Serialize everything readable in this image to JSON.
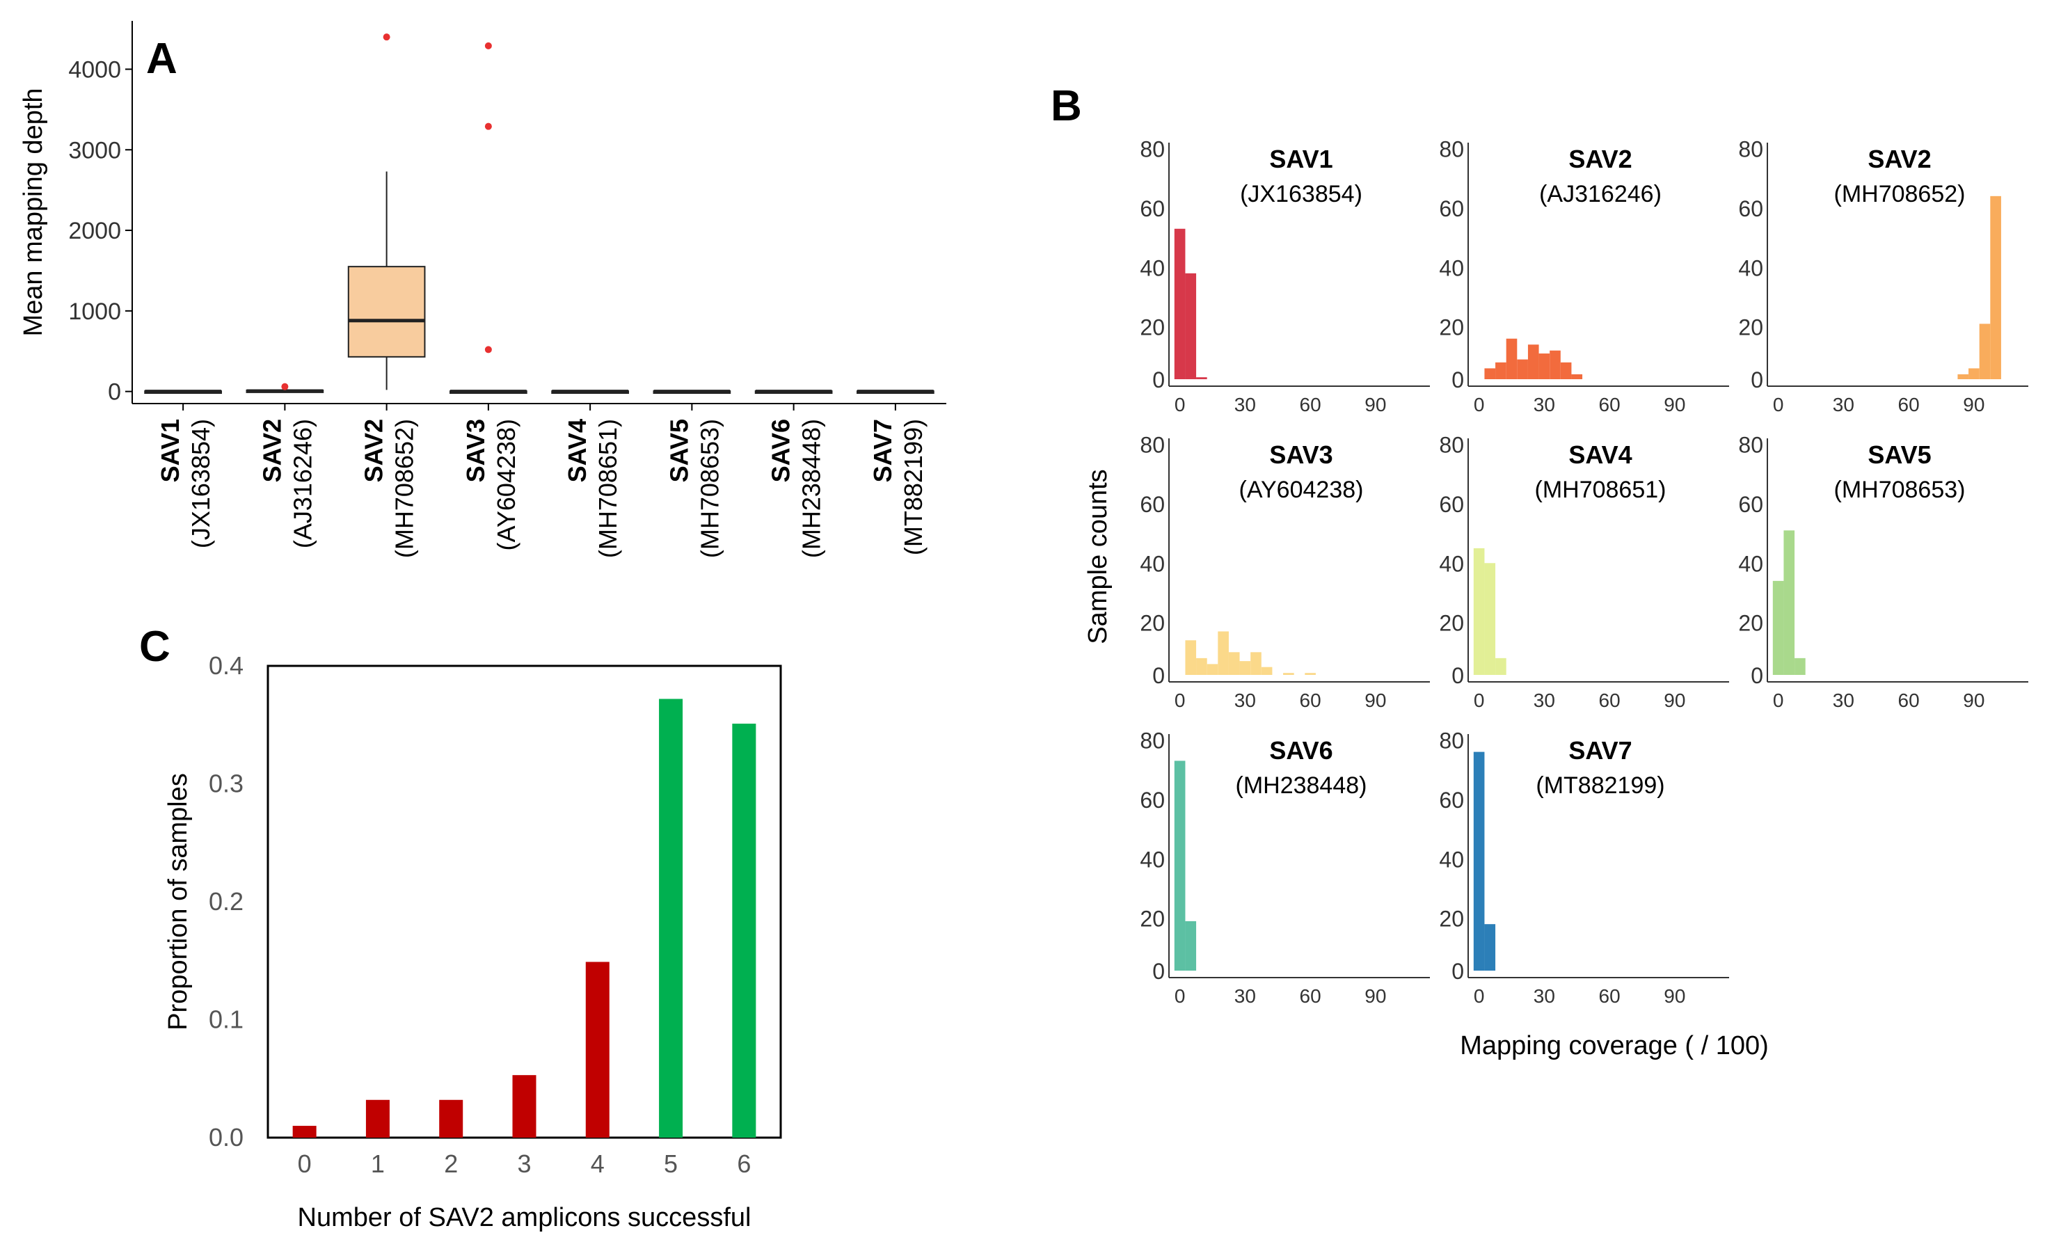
{
  "panel_letters": [
    "A",
    "B",
    "C"
  ],
  "chart_data": [
    {
      "panel": "A",
      "type": "box",
      "ylabel": "Mean mapping depth",
      "yticks": [
        0,
        1000,
        2000,
        3000,
        4000
      ],
      "ylim": [
        -150,
        4600
      ],
      "grid": false,
      "categories": [
        {
          "name": "SAV1",
          "accession": "(JX163854)"
        },
        {
          "name": "SAV2",
          "accession": "(AJ316246)"
        },
        {
          "name": "SAV2",
          "accession": "(MH708652)"
        },
        {
          "name": "SAV3",
          "accession": "(AY604238)"
        },
        {
          "name": "SAV4",
          "accession": "(MH708651)"
        },
        {
          "name": "SAV5",
          "accession": "(MH708653)"
        },
        {
          "name": "SAV6",
          "accession": "(MH238448)"
        },
        {
          "name": "SAV7",
          "accession": "(MT882199)"
        }
      ],
      "boxes": [
        {
          "q1": 0,
          "median": 0,
          "q3": 5,
          "whisker_low": 0,
          "whisker_high": 10,
          "outliers": [],
          "color": "#f8cc9e"
        },
        {
          "q1": 0,
          "median": 5,
          "q3": 15,
          "whisker_low": 0,
          "whisker_high": 30,
          "outliers": [
            60
          ],
          "color": "#f8cc9e"
        },
        {
          "q1": 430,
          "median": 880,
          "q3": 1550,
          "whisker_low": 20,
          "whisker_high": 2730,
          "outliers": [
            4400
          ],
          "color": "#f8cc9e"
        },
        {
          "q1": 0,
          "median": 0,
          "q3": 5,
          "whisker_low": 0,
          "whisker_high": 10,
          "outliers": [
            520,
            3290,
            4290
          ],
          "color": "#f8cc9e"
        },
        {
          "q1": 0,
          "median": 0,
          "q3": 5,
          "whisker_low": 0,
          "whisker_high": 10,
          "outliers": [],
          "color": "#f8cc9e"
        },
        {
          "q1": 0,
          "median": 0,
          "q3": 5,
          "whisker_low": 0,
          "whisker_high": 10,
          "outliers": [],
          "color": "#f8cc9e"
        },
        {
          "q1": 0,
          "median": 0,
          "q3": 5,
          "whisker_low": 0,
          "whisker_high": 10,
          "outliers": [],
          "color": "#f8cc9e"
        },
        {
          "q1": 0,
          "median": 0,
          "q3": 5,
          "whisker_low": 0,
          "whisker_high": 10,
          "outliers": [],
          "color": "#f8cc9e"
        }
      ],
      "outlier_color": "#e83030"
    },
    {
      "panel": "B",
      "type": "histogram",
      "xlabel": "Mapping coverage ( / 100)",
      "ylabel": "Sample counts",
      "xticks": [
        0,
        30,
        60,
        90
      ],
      "yticks": [
        0,
        20,
        40,
        60,
        80
      ],
      "xlim": [
        -5,
        115
      ],
      "ylim": [
        0,
        82
      ],
      "bin_width": 5,
      "panels": [
        {
          "name": "SAV1",
          "accession": "(JX163854)",
          "color": "#d7384a",
          "bins": [
            {
              "x": 0,
              "count": 53
            },
            {
              "x": 5,
              "count": 38
            },
            {
              "x": 10,
              "count": 3
            }
          ]
        },
        {
          "name": "SAV2",
          "accession": "(AJ316246)",
          "color": "#f26b3d",
          "bins": [
            {
              "x": 0,
              "count": 1
            },
            {
              "x": 5,
              "count": 6
            },
            {
              "x": 10,
              "count": 8
            },
            {
              "x": 15,
              "count": 16
            },
            {
              "x": 20,
              "count": 9
            },
            {
              "x": 25,
              "count": 14
            },
            {
              "x": 30,
              "count": 11
            },
            {
              "x": 35,
              "count": 12
            },
            {
              "x": 40,
              "count": 8
            },
            {
              "x": 45,
              "count": 4
            }
          ]
        },
        {
          "name": "SAV2",
          "accession": "(MH708652)",
          "color": "#f9ac5c",
          "bins": [
            {
              "x": 75,
              "count": 1
            },
            {
              "x": 80,
              "count": 1
            },
            {
              "x": 85,
              "count": 4
            },
            {
              "x": 90,
              "count": 6
            },
            {
              "x": 95,
              "count": 21
            },
            {
              "x": 100,
              "count": 64
            }
          ]
        },
        {
          "name": "SAV3",
          "accession": "(AY604238)",
          "color": "#fbd98a",
          "bins": [
            {
              "x": 0,
              "count": 2
            },
            {
              "x": 5,
              "count": 14
            },
            {
              "x": 10,
              "count": 8
            },
            {
              "x": 15,
              "count": 6
            },
            {
              "x": 20,
              "count": 17
            },
            {
              "x": 25,
              "count": 10
            },
            {
              "x": 30,
              "count": 7
            },
            {
              "x": 35,
              "count": 10
            },
            {
              "x": 40,
              "count": 5
            },
            {
              "x": 45,
              "count": 2
            },
            {
              "x": 50,
              "count": 3
            },
            {
              "x": 55,
              "count": 2
            },
            {
              "x": 60,
              "count": 3
            },
            {
              "x": 65,
              "count": 2
            },
            {
              "x": 70,
              "count": 1
            },
            {
              "x": 80,
              "count": 1
            },
            {
              "x": 90,
              "count": 1
            },
            {
              "x": 100,
              "count": 2
            }
          ]
        },
        {
          "name": "SAV4",
          "accession": "(MH708651)",
          "color": "#e2ef96",
          "bins": [
            {
              "x": 0,
              "count": 45
            },
            {
              "x": 5,
              "count": 40
            },
            {
              "x": 10,
              "count": 8
            },
            {
              "x": 15,
              "count": 2
            }
          ]
        },
        {
          "name": "SAV5",
          "accession": "(MH708653)",
          "color": "#a9d98c",
          "bins": [
            {
              "x": 0,
              "count": 34
            },
            {
              "x": 5,
              "count": 51
            },
            {
              "x": 10,
              "count": 8
            },
            {
              "x": 15,
              "count": 1
            }
          ]
        },
        {
          "name": "SAV6",
          "accession": "(MH238448)",
          "color": "#5cc0a3",
          "bins": [
            {
              "x": 0,
              "count": 73
            },
            {
              "x": 5,
              "count": 19
            },
            {
              "x": 10,
              "count": 2
            }
          ]
        },
        {
          "name": "SAV7",
          "accession": "(MT882199)",
          "color": "#2c7fb8",
          "bins": [
            {
              "x": 0,
              "count": 76
            },
            {
              "x": 5,
              "count": 18
            }
          ]
        }
      ]
    },
    {
      "panel": "C",
      "type": "bar",
      "xlabel": "Number of SAV2 amplicons successful",
      "ylabel": "Proportion of samples",
      "categories": [
        "0",
        "1",
        "2",
        "3",
        "4",
        "5",
        "6"
      ],
      "values": [
        0.01,
        0.032,
        0.032,
        0.053,
        0.149,
        0.372,
        0.351
      ],
      "colors": [
        "#c00000",
        "#c00000",
        "#c00000",
        "#c00000",
        "#c00000",
        "#00b050",
        "#00b050"
      ],
      "yticks": [
        "0.0",
        "0.1",
        "0.2",
        "0.3",
        "0.4"
      ],
      "ylim": [
        0,
        0.4
      ],
      "grid": false
    }
  ]
}
